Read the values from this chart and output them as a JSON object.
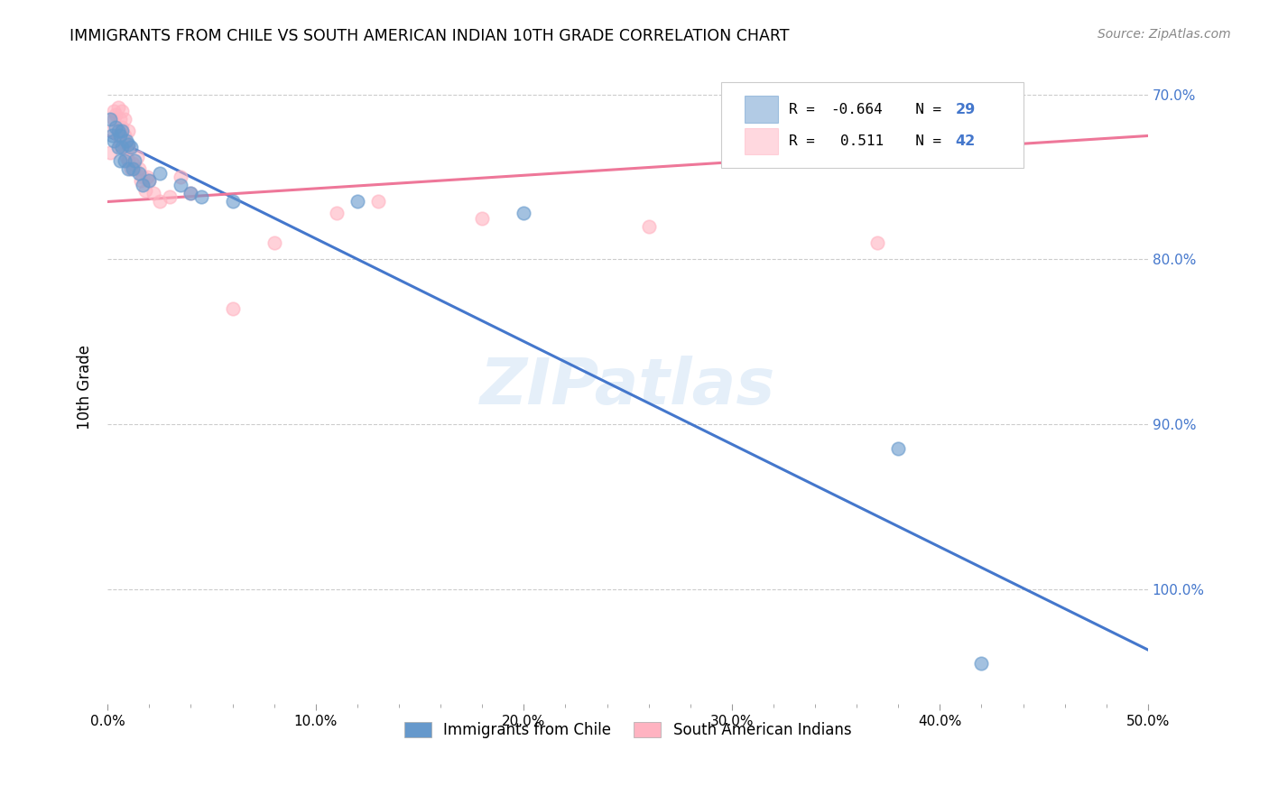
{
  "title": "IMMIGRANTS FROM CHILE VS SOUTH AMERICAN INDIAN 10TH GRADE CORRELATION CHART",
  "source_text": "Source: ZipAtlas.com",
  "ylabel": "10th Grade",
  "xlim": [
    0.0,
    0.5
  ],
  "ylim": [
    0.63,
    1.015
  ],
  "xtick_labels": [
    "0.0%",
    "",
    "",
    "",
    "",
    "10.0%",
    "",
    "",
    "",
    "",
    "20.0%",
    "",
    "",
    "",
    "",
    "30.0%",
    "",
    "",
    "",
    "",
    "40.0%",
    "",
    "",
    "",
    "",
    "50.0%"
  ],
  "xtick_vals": [
    0.0,
    0.02,
    0.04,
    0.06,
    0.08,
    0.1,
    0.12,
    0.14,
    0.16,
    0.18,
    0.2,
    0.22,
    0.24,
    0.26,
    0.28,
    0.3,
    0.32,
    0.34,
    0.36,
    0.38,
    0.4,
    0.42,
    0.44,
    0.46,
    0.48,
    0.5
  ],
  "ytick_vals": [
    0.7,
    0.8,
    0.9,
    1.0
  ],
  "right_ytick_labels": [
    "100.0%",
    "90.0%",
    "80.0%",
    "70.0%"
  ],
  "blue_R": "-0.664",
  "blue_N": "29",
  "pink_R": "0.511",
  "pink_N": "42",
  "blue_color": "#6699CC",
  "pink_color": "#FFB3C1",
  "blue_line_color": "#4477CC",
  "pink_line_color": "#EE7799",
  "watermark": "ZIPatlas",
  "legend_label_blue": "Immigrants from Chile",
  "legend_label_pink": "South American Indians",
  "blue_line_x0": 0.0,
  "blue_line_y0": 0.975,
  "blue_line_x1": 0.5,
  "blue_line_y1": 0.663,
  "pink_line_x0": 0.0,
  "pink_line_y0": 0.935,
  "pink_line_x1": 0.5,
  "pink_line_y1": 0.975,
  "blue_scatter_x": [
    0.001,
    0.002,
    0.003,
    0.004,
    0.005,
    0.005,
    0.006,
    0.006,
    0.007,
    0.007,
    0.008,
    0.009,
    0.01,
    0.01,
    0.011,
    0.012,
    0.013,
    0.015,
    0.017,
    0.02,
    0.025,
    0.035,
    0.04,
    0.045,
    0.06,
    0.12,
    0.2,
    0.38,
    0.42
  ],
  "blue_scatter_y": [
    0.985,
    0.975,
    0.972,
    0.98,
    0.968,
    0.978,
    0.96,
    0.975,
    0.968,
    0.978,
    0.96,
    0.972,
    0.955,
    0.97,
    0.968,
    0.955,
    0.96,
    0.952,
    0.945,
    0.948,
    0.952,
    0.945,
    0.94,
    0.938,
    0.935,
    0.935,
    0.928,
    0.785,
    0.655
  ],
  "pink_scatter_x": [
    0.001,
    0.002,
    0.003,
    0.003,
    0.004,
    0.005,
    0.005,
    0.006,
    0.006,
    0.007,
    0.007,
    0.007,
    0.008,
    0.008,
    0.008,
    0.009,
    0.009,
    0.01,
    0.01,
    0.01,
    0.011,
    0.012,
    0.013,
    0.014,
    0.015,
    0.016,
    0.017,
    0.018,
    0.019,
    0.02,
    0.022,
    0.025,
    0.03,
    0.035,
    0.04,
    0.06,
    0.08,
    0.11,
    0.13,
    0.18,
    0.26,
    0.37
  ],
  "pink_scatter_y": [
    0.965,
    0.978,
    0.985,
    0.99,
    0.988,
    0.975,
    0.992,
    0.985,
    0.97,
    0.978,
    0.99,
    0.98,
    0.968,
    0.975,
    0.985,
    0.962,
    0.97,
    0.96,
    0.968,
    0.978,
    0.955,
    0.958,
    0.955,
    0.962,
    0.955,
    0.948,
    0.95,
    0.942,
    0.95,
    0.948,
    0.94,
    0.935,
    0.938,
    0.95,
    0.94,
    0.87,
    0.91,
    0.928,
    0.935,
    0.925,
    0.92,
    0.91
  ]
}
